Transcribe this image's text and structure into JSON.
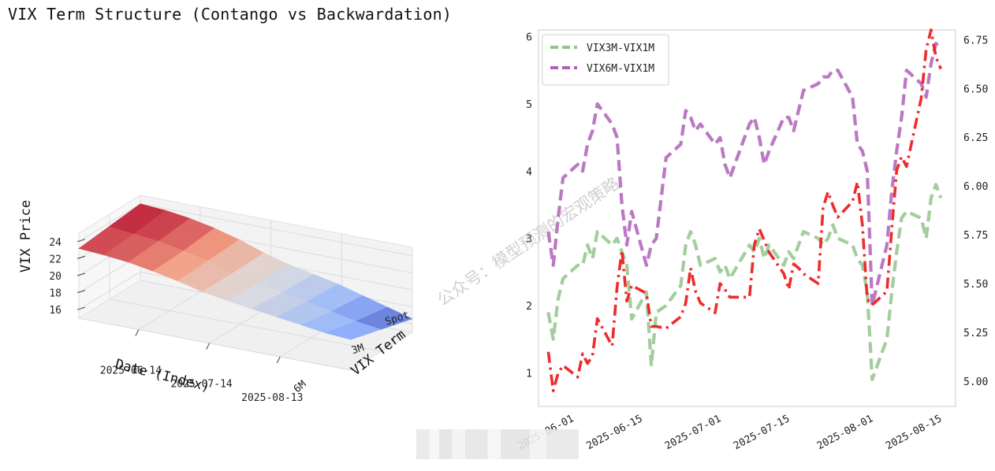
{
  "title": "VIX Term Structure (Contango vs Backwardation)",
  "watermark": "公众号：模型预测的宏观策略",
  "chart_data": [
    {
      "type": "surface3d",
      "zlabel": "VIX Price",
      "xlabel": "Date (Index)",
      "ylabel": "VIX Term",
      "date_ticks": [
        "2025-06-14",
        "2025-07-14",
        "2025-08-13"
      ],
      "term_ticks": [
        "Spot",
        "3M",
        "6M"
      ],
      "z_ticks": [
        16,
        18,
        20,
        22,
        24
      ],
      "zlim": [
        15,
        25
      ],
      "colormap": "coolwarm",
      "surface_levels": [
        [
          24.0,
          23.8,
          23.4,
          22.8,
          22.0,
          21.0,
          20.2,
          19.6,
          19.0,
          18.2,
          17.4,
          16.6
        ],
        [
          23.6,
          23.3,
          23.0,
          22.4,
          21.8,
          20.9,
          20.2,
          19.7,
          19.2,
          18.6,
          18.0,
          17.6
        ],
        [
          23.2,
          23.0,
          22.7,
          22.2,
          21.6,
          20.9,
          20.4,
          20.0,
          19.6,
          19.2,
          18.8,
          18.6
        ]
      ]
    },
    {
      "type": "line",
      "x_ticks": [
        "2025-06-01",
        "2025-06-15",
        "2025-07-01",
        "2025-07-15",
        "2025-08-01",
        "2025-08-15"
      ],
      "y_left_ticks": [
        1,
        2,
        3,
        4,
        5,
        6
      ],
      "y_left_lim": [
        0.5,
        6.1
      ],
      "y_right_ticks": [
        "5.00",
        "5.25",
        "5.50",
        "5.75",
        "6.00",
        "6.25",
        "6.50",
        "6.75"
      ],
      "y_right_lim": [
        4.87,
        6.8
      ],
      "x_lim": [
        "2025-05-25",
        "2025-08-18"
      ],
      "grid": true,
      "legend_position": "upper-left",
      "series": [
        {
          "name": "VIX3M-VIX1M",
          "color": "#93c48b",
          "style": "dashed",
          "axis": "left",
          "x": [
            "2025-05-27",
            "2025-05-28",
            "2025-05-29",
            "2025-05-30",
            "2025-06-02",
            "2025-06-03",
            "2025-06-04",
            "2025-06-05",
            "2025-06-06",
            "2025-06-09",
            "2025-06-10",
            "2025-06-11",
            "2025-06-12",
            "2025-06-13",
            "2025-06-16",
            "2025-06-17",
            "2025-06-18",
            "2025-06-20",
            "2025-06-23",
            "2025-06-24",
            "2025-06-25",
            "2025-06-26",
            "2025-06-27",
            "2025-06-30",
            "2025-07-01",
            "2025-07-02",
            "2025-07-03",
            "2025-07-07",
            "2025-07-08",
            "2025-07-09",
            "2025-07-10",
            "2025-07-11",
            "2025-07-14",
            "2025-07-15",
            "2025-07-16",
            "2025-07-17",
            "2025-07-18",
            "2025-07-21",
            "2025-07-22",
            "2025-07-23",
            "2025-07-24",
            "2025-07-25",
            "2025-07-28",
            "2025-07-29",
            "2025-07-30",
            "2025-07-31",
            "2025-08-01",
            "2025-08-04",
            "2025-08-05",
            "2025-08-06",
            "2025-08-07",
            "2025-08-08",
            "2025-08-11",
            "2025-08-12",
            "2025-08-13",
            "2025-08-14",
            "2025-08-15"
          ],
          "values": [
            1.9,
            1.5,
            2.1,
            2.4,
            2.6,
            2.6,
            2.9,
            2.7,
            3.1,
            2.9,
            3.0,
            2.8,
            2.6,
            1.8,
            2.2,
            1.1,
            1.9,
            2.0,
            2.3,
            2.9,
            3.1,
            2.9,
            2.6,
            2.7,
            2.5,
            2.6,
            2.4,
            2.9,
            2.8,
            3.0,
            2.7,
            2.9,
            2.6,
            2.8,
            2.7,
            2.9,
            3.1,
            3.0,
            2.9,
            3.0,
            3.2,
            3.0,
            2.9,
            2.7,
            2.6,
            2.2,
            0.9,
            1.5,
            2.2,
            2.8,
            3.3,
            3.4,
            3.3,
            3.0,
            3.6,
            3.8,
            3.6
          ]
        },
        {
          "name": "VIX6M-VIX1M",
          "color": "#b060b8",
          "style": "dashed",
          "axis": "left",
          "x": [
            "2025-05-27",
            "2025-05-28",
            "2025-05-29",
            "2025-05-30",
            "2025-06-02",
            "2025-06-03",
            "2025-06-04",
            "2025-06-05",
            "2025-06-06",
            "2025-06-09",
            "2025-06-10",
            "2025-06-11",
            "2025-06-12",
            "2025-06-13",
            "2025-06-16",
            "2025-06-17",
            "2025-06-18",
            "2025-06-20",
            "2025-06-23",
            "2025-06-24",
            "2025-06-25",
            "2025-06-26",
            "2025-06-27",
            "2025-06-30",
            "2025-07-01",
            "2025-07-02",
            "2025-07-03",
            "2025-07-07",
            "2025-07-08",
            "2025-07-09",
            "2025-07-10",
            "2025-07-11",
            "2025-07-14",
            "2025-07-15",
            "2025-07-16",
            "2025-07-17",
            "2025-07-18",
            "2025-07-21",
            "2025-07-22",
            "2025-07-23",
            "2025-07-24",
            "2025-07-25",
            "2025-07-28",
            "2025-07-29",
            "2025-07-30",
            "2025-07-31",
            "2025-08-01",
            "2025-08-04",
            "2025-08-05",
            "2025-08-06",
            "2025-08-07",
            "2025-08-08",
            "2025-08-11",
            "2025-08-12",
            "2025-08-13",
            "2025-08-14",
            "2025-08-15"
          ],
          "values": [
            3.1,
            2.6,
            3.3,
            3.9,
            4.1,
            4.0,
            4.4,
            4.6,
            5.0,
            4.7,
            4.5,
            3.5,
            2.9,
            3.4,
            2.6,
            2.9,
            3.0,
            4.2,
            4.4,
            4.9,
            4.8,
            4.6,
            4.7,
            4.4,
            4.5,
            4.1,
            3.9,
            4.7,
            4.8,
            4.5,
            4.1,
            4.3,
            4.8,
            4.8,
            4.6,
            4.9,
            5.2,
            5.3,
            5.4,
            5.4,
            5.5,
            5.5,
            5.1,
            4.4,
            4.3,
            4.0,
            2.0,
            2.9,
            3.7,
            4.3,
            4.8,
            5.5,
            5.3,
            5.1,
            5.6,
            5.9,
            5.8
          ]
        },
        {
          "name": "",
          "color": "#ee2020",
          "style": "dashdot",
          "axis": "right",
          "x": [
            "2025-05-27",
            "2025-05-28",
            "2025-05-29",
            "2025-05-30",
            "2025-06-02",
            "2025-06-03",
            "2025-06-04",
            "2025-06-05",
            "2025-06-06",
            "2025-06-09",
            "2025-06-10",
            "2025-06-11",
            "2025-06-12",
            "2025-06-13",
            "2025-06-16",
            "2025-06-17",
            "2025-06-18",
            "2025-06-20",
            "2025-06-23",
            "2025-06-24",
            "2025-06-25",
            "2025-06-26",
            "2025-06-27",
            "2025-06-30",
            "2025-07-01",
            "2025-07-02",
            "2025-07-03",
            "2025-07-07",
            "2025-07-08",
            "2025-07-09",
            "2025-07-10",
            "2025-07-11",
            "2025-07-14",
            "2025-07-15",
            "2025-07-16",
            "2025-07-17",
            "2025-07-18",
            "2025-07-21",
            "2025-07-22",
            "2025-07-23",
            "2025-07-24",
            "2025-07-25",
            "2025-07-28",
            "2025-07-29",
            "2025-07-30",
            "2025-07-31",
            "2025-08-01",
            "2025-08-04",
            "2025-08-05",
            "2025-08-06",
            "2025-08-07",
            "2025-08-08",
            "2025-08-11",
            "2025-08-12",
            "2025-08-13",
            "2025-08-14",
            "2025-08-15"
          ],
          "values": [
            5.15,
            4.95,
            5.04,
            5.08,
            5.02,
            5.14,
            5.09,
            5.13,
            5.32,
            5.18,
            5.48,
            5.67,
            5.41,
            5.49,
            5.45,
            5.28,
            5.28,
            5.27,
            5.33,
            5.4,
            5.58,
            5.46,
            5.4,
            5.35,
            5.5,
            5.47,
            5.43,
            5.43,
            5.7,
            5.78,
            5.72,
            5.66,
            5.55,
            5.47,
            5.6,
            5.58,
            5.55,
            5.5,
            5.89,
            5.97,
            5.9,
            5.84,
            5.92,
            6.02,
            5.8,
            5.42,
            5.39,
            5.46,
            5.78,
            6.08,
            6.15,
            6.1,
            6.45,
            6.7,
            6.8,
            6.66,
            6.6
          ]
        }
      ]
    }
  ]
}
